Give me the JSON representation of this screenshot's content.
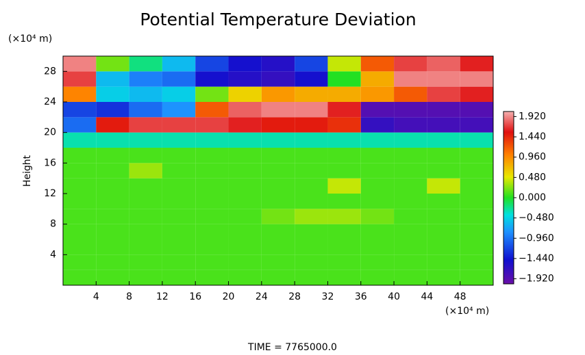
{
  "chart_data": {
    "type": "heatmap",
    "title": "Potential Temperature Deviation",
    "ylabel": "Height",
    "y_unit": "(×10⁴ m)",
    "x_unit": "(×10⁴ m)",
    "footer": "TIME = 7765000.0",
    "xlim": [
      0,
      52
    ],
    "ylim": [
      0,
      30
    ],
    "xticks": [
      4,
      8,
      12,
      16,
      20,
      24,
      28,
      32,
      36,
      40,
      44,
      48
    ],
    "yticks": [
      4,
      8,
      12,
      16,
      20,
      24,
      28
    ],
    "x": [
      2,
      6,
      10,
      14,
      18,
      22,
      26,
      30,
      34,
      38,
      42,
      46,
      50
    ],
    "y": [
      1,
      3,
      5,
      7,
      9,
      11,
      13,
      15,
      17,
      19,
      21,
      23,
      25,
      27,
      29
    ],
    "zlim": [
      -2.04,
      2.04
    ],
    "zticks": [
      {
        "value": 1.92,
        "label": "1.920"
      },
      {
        "value": 1.44,
        "label": "1.440"
      },
      {
        "value": 0.96,
        "label": "0.960"
      },
      {
        "value": 0.48,
        "label": "0.480"
      },
      {
        "value": 0,
        "label": "0.000"
      },
      {
        "value": -0.48,
        "label": "−0.480"
      },
      {
        "value": -0.96,
        "label": "−0.960"
      },
      {
        "value": -1.44,
        "label": "−1.440"
      },
      {
        "value": -1.92,
        "label": "−1.920"
      }
    ],
    "z": [
      [
        0.1,
        0.1,
        0.1,
        0.1,
        0.1,
        0.1,
        0.1,
        0.1,
        0.1,
        0.1,
        0.1,
        0.1,
        0.1
      ],
      [
        0.1,
        0.1,
        0.1,
        0.1,
        0.1,
        0.1,
        0.1,
        0.1,
        0.1,
        0.1,
        0.1,
        0.1,
        0.1
      ],
      [
        0.1,
        0.1,
        0.1,
        0.1,
        0.1,
        0.1,
        0.1,
        0.1,
        0.1,
        0.1,
        0.1,
        0.1,
        0.1
      ],
      [
        0.1,
        0.1,
        0.1,
        0.1,
        0.1,
        0.1,
        0.1,
        0.1,
        0.1,
        0.1,
        0.1,
        0.1,
        0.1
      ],
      [
        0.1,
        0.1,
        0.1,
        0.1,
        0.1,
        0.1,
        0.2,
        0.3,
        0.3,
        0.2,
        0.1,
        0.1,
        0.1
      ],
      [
        0.1,
        0.1,
        0.1,
        0.1,
        0.1,
        0.1,
        0.1,
        0.1,
        0.1,
        0.1,
        0.1,
        0.1,
        0.1
      ],
      [
        0.1,
        0.1,
        0.1,
        0.1,
        0.1,
        0.1,
        0.1,
        0.1,
        0.4,
        0.1,
        0.1,
        0.4,
        0.1
      ],
      [
        0.1,
        0.1,
        0.3,
        0.1,
        0.1,
        0.1,
        0.1,
        0.1,
        0.1,
        0.1,
        0.1,
        0.1,
        0.1
      ],
      [
        0.1,
        0.1,
        0.1,
        0.1,
        0.1,
        0.1,
        0.1,
        0.1,
        0.1,
        0.1,
        0.1,
        0.1,
        0.1
      ],
      [
        -0.3,
        -0.3,
        -0.3,
        -0.3,
        -0.3,
        -0.3,
        -0.3,
        -0.3,
        -0.3,
        -0.3,
        -0.3,
        -0.3,
        -0.3
      ],
      [
        -1.0,
        1.5,
        1.7,
        1.7,
        1.7,
        1.6,
        1.5,
        1.5,
        1.4,
        -1.7,
        -1.8,
        -1.8,
        -1.8
      ],
      [
        -1.2,
        -1.3,
        -1.0,
        -0.8,
        1.2,
        1.8,
        1.9,
        1.9,
        1.6,
        -1.9,
        -1.9,
        -1.9,
        -1.9
      ],
      [
        1.0,
        -0.5,
        -0.6,
        -0.5,
        0.2,
        0.6,
        0.9,
        0.8,
        0.8,
        0.9,
        1.2,
        1.7,
        1.6
      ],
      [
        1.7,
        -0.6,
        -0.9,
        -1.0,
        -1.5,
        -1.6,
        -1.7,
        -1.5,
        0.0,
        0.8,
        1.9,
        1.9,
        1.9
      ],
      [
        1.9,
        0.2,
        -0.2,
        -0.6,
        -1.2,
        -1.5,
        -1.6,
        -1.2,
        0.4,
        1.2,
        1.7,
        1.8,
        1.6
      ]
    ]
  }
}
